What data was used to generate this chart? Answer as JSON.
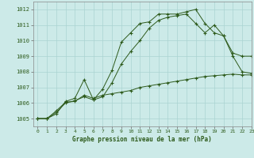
{
  "title": "Graphe pression niveau de la mer (hPa)",
  "background_color": "#cceae8",
  "grid_color": "#aad4d2",
  "line_color": "#2d5a1b",
  "xlim": [
    -0.5,
    23
  ],
  "ylim": [
    1004.5,
    1012.5
  ],
  "yticks": [
    1005,
    1006,
    1007,
    1008,
    1009,
    1010,
    1011,
    1012
  ],
  "xticks": [
    0,
    1,
    2,
    3,
    4,
    5,
    6,
    7,
    8,
    9,
    10,
    11,
    12,
    13,
    14,
    15,
    16,
    17,
    18,
    19,
    20,
    21,
    22,
    23
  ],
  "series": [
    [
      1005.0,
      1005.0,
      1005.3,
      1006.1,
      1006.3,
      1007.5,
      1006.2,
      1006.9,
      1008.1,
      1009.9,
      1010.5,
      1011.1,
      1011.2,
      1011.7,
      1011.7,
      1011.7,
      1011.85,
      1012.0,
      1011.1,
      1010.5,
      1010.3,
      1009.0,
      1008.0,
      1007.9
    ],
    [
      1005.0,
      1005.0,
      1005.5,
      1006.05,
      1006.1,
      1006.5,
      1006.3,
      1006.5,
      1006.6,
      1006.7,
      1006.8,
      1007.0,
      1007.1,
      1007.2,
      1007.3,
      1007.4,
      1007.5,
      1007.6,
      1007.7,
      1007.75,
      1007.8,
      1007.85,
      1007.8,
      1007.8
    ],
    [
      1005.0,
      1005.0,
      1005.4,
      1006.0,
      1006.15,
      1006.4,
      1006.2,
      1006.4,
      1007.3,
      1008.5,
      1009.3,
      1010.0,
      1010.8,
      1011.3,
      1011.5,
      1011.6,
      1011.7,
      1011.1,
      1010.5,
      1011.0,
      1010.3,
      1009.2,
      1009.0,
      1009.0
    ]
  ]
}
